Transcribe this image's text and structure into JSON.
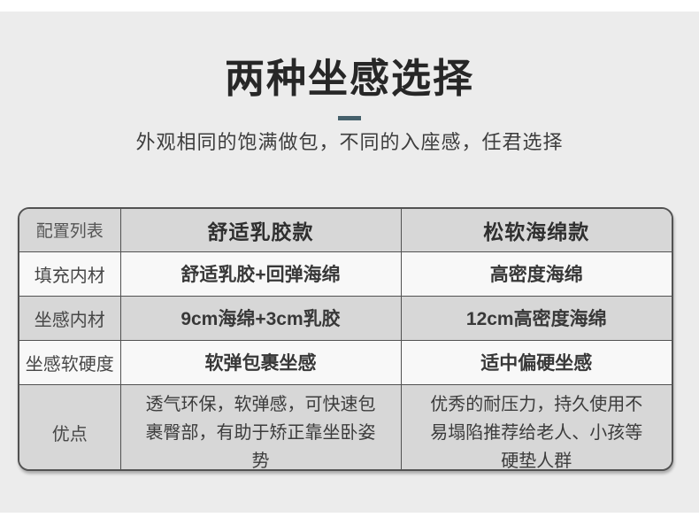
{
  "page": {
    "background_color": "#ececec",
    "accent_color": "#45606b"
  },
  "header": {
    "title": "两种坐感选择",
    "subtitle": "外观相同的饱满做包，不同的入座感，任君选择"
  },
  "table": {
    "columns": [
      "配置列表",
      "舒适乳胶款",
      "松软海绵款"
    ],
    "rows": [
      {
        "label": "填充内材",
        "latex": "舒适乳胶+回弹海绵",
        "sponge": "高密度海绵"
      },
      {
        "label": "坐感内材",
        "latex": "9cm海绵+3cm乳胶",
        "sponge": "12cm高密度海绵"
      },
      {
        "label": "坐感软硬度",
        "latex": "软弹包裹坐感",
        "sponge": "适中偏硬坐感"
      },
      {
        "label": "优点",
        "latex": "透气环保，软弹感，可快速包裹臀部，有助于矫正靠坐卧姿势",
        "sponge": "优秀的耐压力，持久使用不易塌陷推荐给老人、小孩等硬垫人群"
      }
    ]
  }
}
